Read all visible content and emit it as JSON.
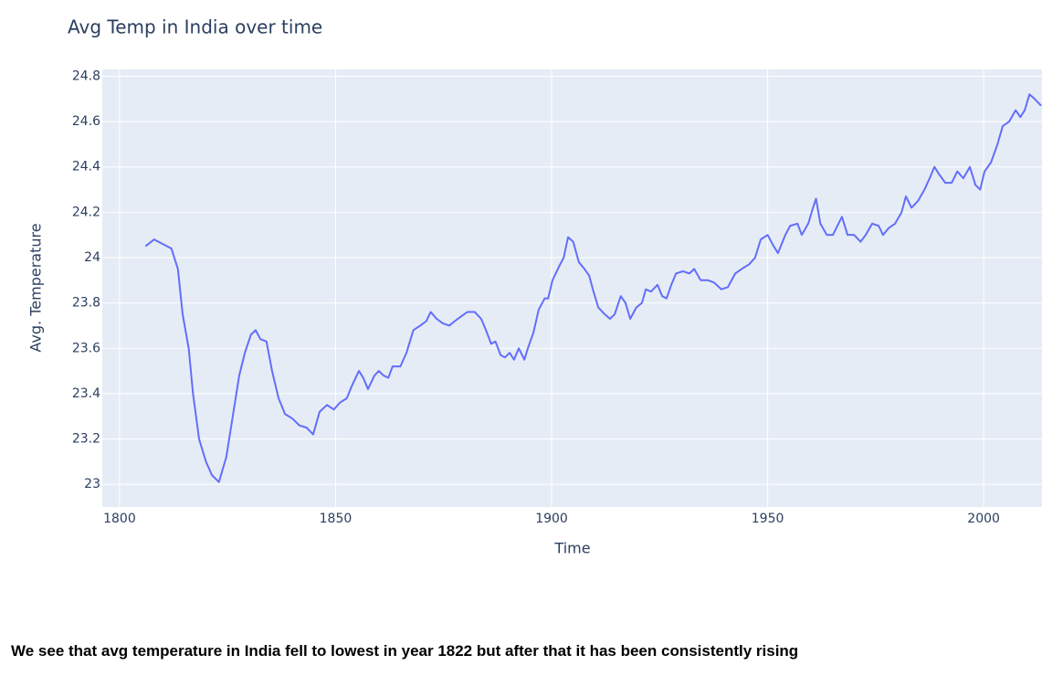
{
  "chart_data": {
    "type": "line",
    "title": "Avg Temp in India over time",
    "x_label": "Time",
    "y_label": "Avg. Temperature",
    "x": [
      1806,
      1808,
      1810,
      1812,
      1813.5,
      1814.6,
      1816,
      1817,
      1818.4,
      1820,
      1821.4,
      1823,
      1824.7,
      1826.2,
      1827.7,
      1829,
      1830.4,
      1831.5,
      1832.6,
      1834,
      1835.3,
      1836.8,
      1838.3,
      1840,
      1841.6,
      1843.3,
      1844.8,
      1846.3,
      1848,
      1849.6,
      1851,
      1852.6,
      1853.9,
      1855.4,
      1856.4,
      1857.5,
      1859,
      1860,
      1861.1,
      1862.2,
      1863.2,
      1865,
      1866.4,
      1868,
      1869.6,
      1871,
      1872,
      1873.4,
      1874.8,
      1876.3,
      1877.6,
      1879,
      1880.5,
      1882.2,
      1883.7,
      1884.8,
      1886,
      1887,
      1888.2,
      1889.2,
      1890.3,
      1891.3,
      1892.4,
      1893.7,
      1894.5,
      1895.8,
      1897,
      1898.4,
      1899.2,
      1900.2,
      1901.7,
      1902.8,
      1903.8,
      1905,
      1906.3,
      1907.6,
      1908.7,
      1909.7,
      1910.8,
      1912.3,
      1913.5,
      1914.6,
      1916,
      1917.1,
      1918.2,
      1919.6,
      1920.9,
      1921.8,
      1923,
      1924.5,
      1925.6,
      1926.6,
      1927.7,
      1928.8,
      1930.4,
      1931.9,
      1933,
      1934.5,
      1936.2,
      1937.6,
      1939.3,
      1940.8,
      1942.5,
      1944,
      1945.7,
      1947.1,
      1948.4,
      1950,
      1951.4,
      1952.4,
      1954.1,
      1955.2,
      1956.9,
      1957.9,
      1959.4,
      1960.5,
      1961.2,
      1962.2,
      1963.7,
      1965.1,
      1966.4,
      1967.2,
      1968.5,
      1970,
      1971.5,
      1972.7,
      1974.2,
      1975.7,
      1976.7,
      1978,
      1979.5,
      1981,
      1982,
      1983.3,
      1984.8,
      1986.3,
      1987.5,
      1988.6,
      1989.6,
      1991.1,
      1992.6,
      1993.9,
      1995.3,
      1996.8,
      1998.1,
      1999.2,
      2000.2,
      2001.7,
      2003.2,
      2004.4,
      2005.9,
      2007.4,
      2008.5,
      2009.5,
      2010.6,
      2011.8,
      2013.3
    ],
    "series": [
      {
        "color": "#636efa",
        "values": [
          24.05,
          24.08,
          24.06,
          24.04,
          23.95,
          23.75,
          23.6,
          23.4,
          23.2,
          23.1,
          23.04,
          23.01,
          23.12,
          23.3,
          23.48,
          23.58,
          23.66,
          23.68,
          23.64,
          23.63,
          23.5,
          23.38,
          23.31,
          23.29,
          23.26,
          23.25,
          23.22,
          23.32,
          23.35,
          23.33,
          23.36,
          23.38,
          23.44,
          23.5,
          23.47,
          23.42,
          23.48,
          23.5,
          23.48,
          23.47,
          23.52,
          23.52,
          23.58,
          23.68,
          23.7,
          23.72,
          23.76,
          23.73,
          23.71,
          23.7,
          23.72,
          23.74,
          23.76,
          23.76,
          23.73,
          23.68,
          23.62,
          23.63,
          23.57,
          23.56,
          23.58,
          23.55,
          23.6,
          23.55,
          23.6,
          23.67,
          23.77,
          23.82,
          23.82,
          23.9,
          23.96,
          24.0,
          24.09,
          24.07,
          23.98,
          23.95,
          23.92,
          23.85,
          23.78,
          23.75,
          23.73,
          23.75,
          23.83,
          23.8,
          23.73,
          23.78,
          23.8,
          23.86,
          23.85,
          23.88,
          23.83,
          23.82,
          23.88,
          23.93,
          23.94,
          23.93,
          23.95,
          23.9,
          23.9,
          23.89,
          23.86,
          23.87,
          23.93,
          23.95,
          23.97,
          24.0,
          24.08,
          24.1,
          24.05,
          24.02,
          24.1,
          24.14,
          24.15,
          24.1,
          24.15,
          24.22,
          24.26,
          24.15,
          24.1,
          24.1,
          24.15,
          24.18,
          24.1,
          24.1,
          24.07,
          24.1,
          24.15,
          24.14,
          24.1,
          24.13,
          24.15,
          24.2,
          24.27,
          24.22,
          24.25,
          24.3,
          24.35,
          24.4,
          24.37,
          24.33,
          24.33,
          24.38,
          24.35,
          24.4,
          24.32,
          24.3,
          24.38,
          24.42,
          24.5,
          24.58,
          24.6,
          24.65,
          24.62,
          24.65,
          24.72,
          24.7,
          24.67
        ]
      }
    ],
    "xlim": [
      1796,
      2013.5
    ],
    "ylim": [
      22.9,
      24.83
    ],
    "xticks": [
      1800,
      1850,
      1900,
      1950,
      2000
    ],
    "yticks": [
      23,
      23.2,
      23.4,
      23.6,
      23.8,
      24,
      24.2,
      24.4,
      24.6,
      24.8
    ],
    "grid": true,
    "background": "#e5ecf6"
  },
  "caption": "We see that avg temperature in India fell to lowest in year 1822 but after that it has been consistently rising"
}
